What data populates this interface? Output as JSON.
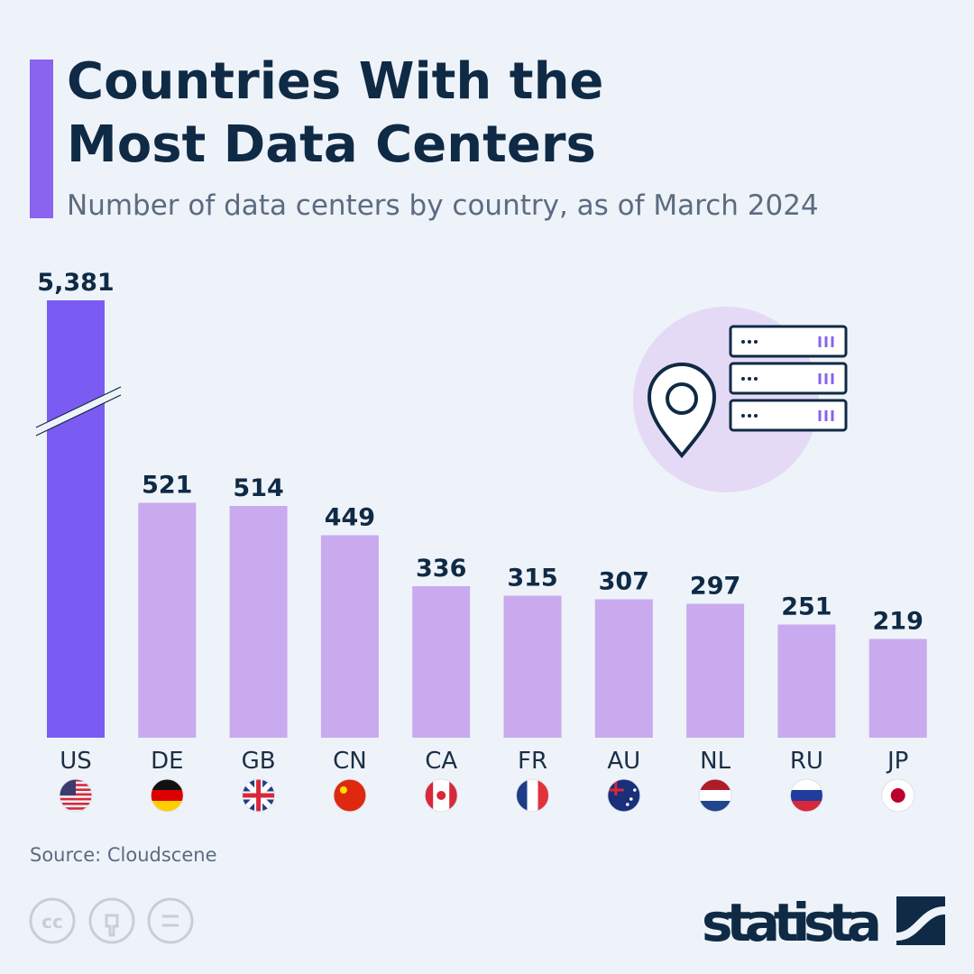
{
  "chart_data": {
    "type": "bar",
    "title": "Countries With the Most Data Centers",
    "subtitle": "Number of data centers by country, as of March 2024",
    "categories": [
      "US",
      "DE",
      "GB",
      "CN",
      "CA",
      "FR",
      "AU",
      "NL",
      "RU",
      "JP"
    ],
    "values": [
      5381,
      521,
      514,
      449,
      336,
      315,
      307,
      297,
      251,
      219
    ],
    "value_labels": [
      "5,381",
      "521",
      "514",
      "449",
      "336",
      "315",
      "307",
      "297",
      "251",
      "219"
    ],
    "colors": [
      "#7b5cf2",
      "#c9aaee",
      "#c9aaee",
      "#c9aaee",
      "#c9aaee",
      "#c9aaee",
      "#c9aaee",
      "#c9aaee",
      "#c9aaee",
      "#c9aaee"
    ],
    "source": "Source: Cloudscene",
    "brand": "statista"
  }
}
